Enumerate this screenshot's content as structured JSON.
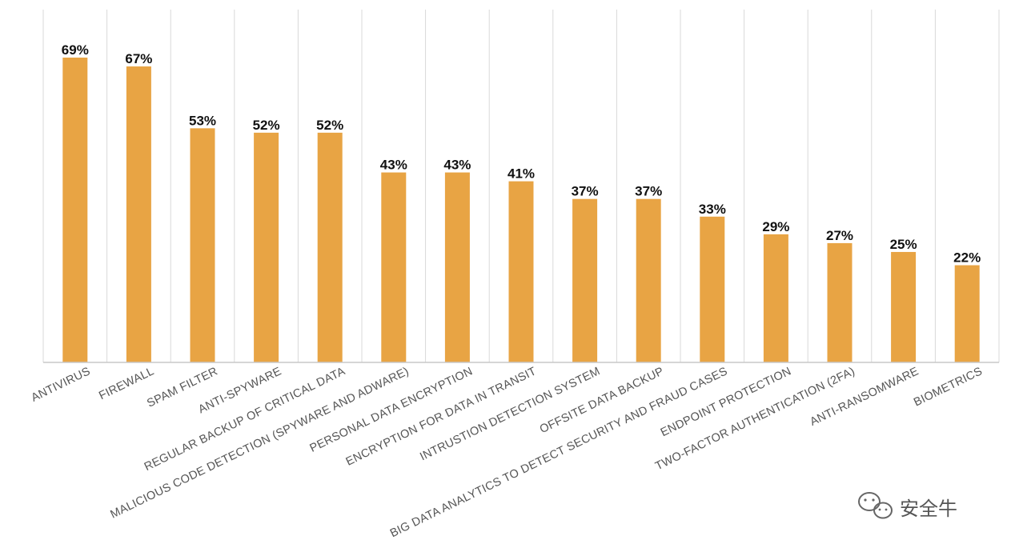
{
  "chart_data": {
    "type": "bar",
    "title": "",
    "xlabel": "",
    "ylabel": "",
    "ylim": [
      0,
      70
    ],
    "grid": "vertical-separators",
    "legend": "none",
    "bar_color": "#E8A444",
    "grid_color": "#D9D9D9",
    "axis_color": "#C8C8C8",
    "categories": [
      "ANTIVIRUS",
      "FIREWALL",
      "SPAM FILTER",
      "ANTI-SPYWARE",
      "REGULAR BACKUP OF CRITICAL DATA",
      "MALICIOUS CODE DETECTION (SPYWARE AND ADWARE)",
      "PERSONAL DATA ENCRYPTION",
      "ENCRYPTION FOR DATA IN TRANSIT",
      "INTRUSTION DETECTION SYSTEM",
      "OFFSITE DATA BACKUP",
      "BIG DATA ANALYTICS TO DETECT SECURITY AND FRAUD CASES",
      "ENDPOINT PROTECTION",
      "TWO-FACTOR AUTHENTICATION (2FA)",
      "ANTI-RANSOMWARE",
      "BIOMETRICS"
    ],
    "values": [
      69,
      67,
      53,
      52,
      52,
      43,
      43,
      41,
      37,
      37,
      33,
      29,
      27,
      25,
      22
    ],
    "data_labels": [
      "69%",
      "67%",
      "53%",
      "52%",
      "52%",
      "43%",
      "43%",
      "41%",
      "37%",
      "37%",
      "33%",
      "29%",
      "27%",
      "25%",
      "22%"
    ]
  },
  "watermark": {
    "text": "安全牛",
    "icon": "wechat-icon"
  }
}
